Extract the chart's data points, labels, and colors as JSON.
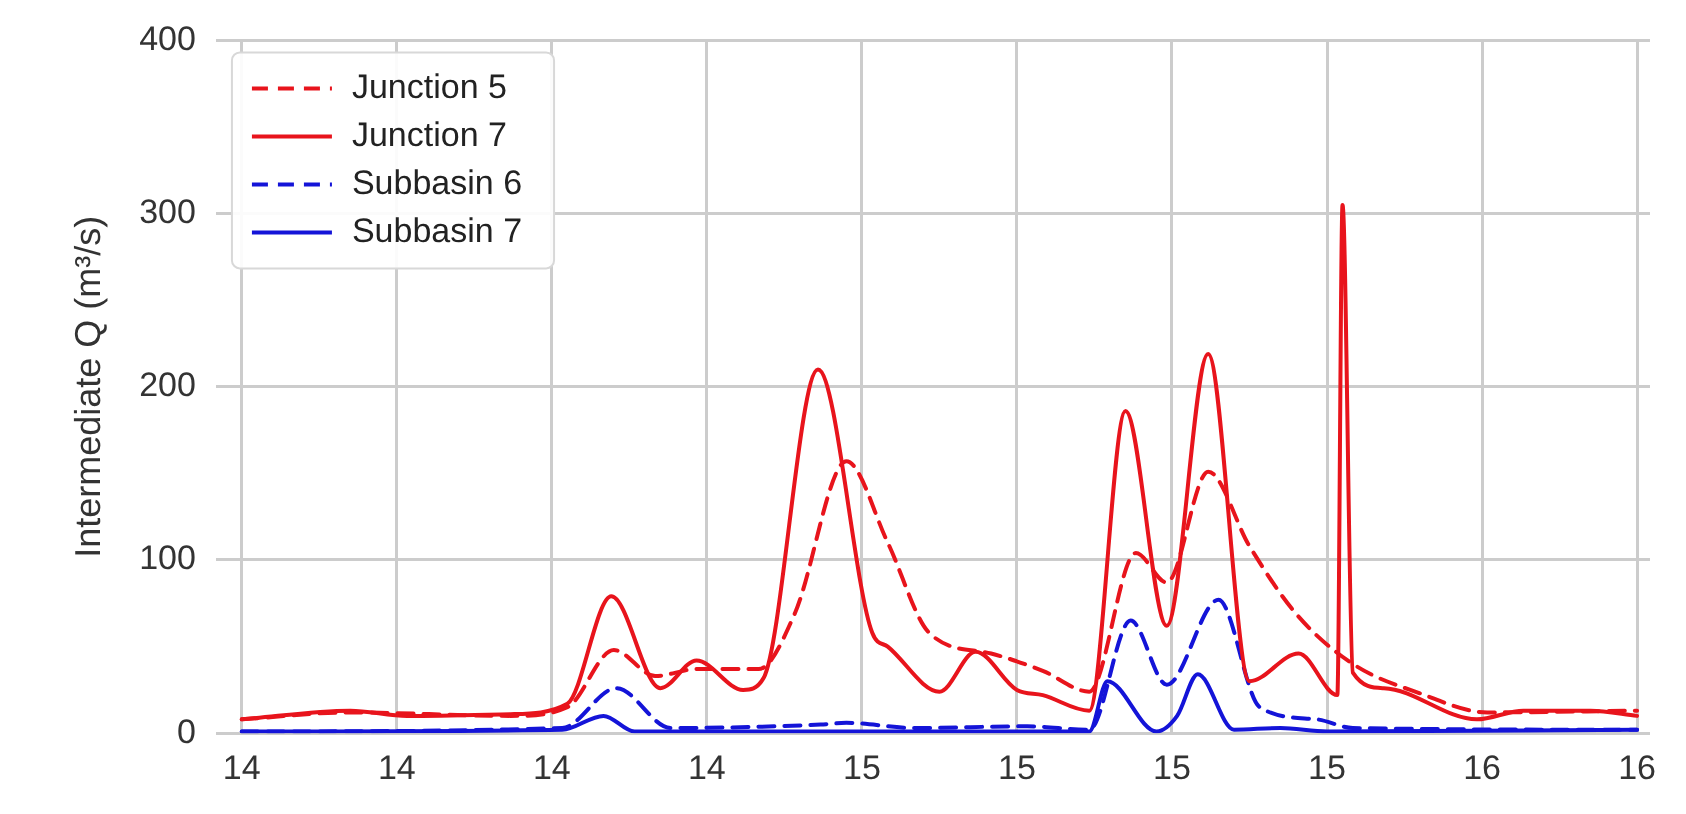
{
  "chart_data": {
    "type": "line",
    "ylabel": "Intermediate Q (m³/s)",
    "xlim": [
      "--01-13T23:00",
      "--01-16T06:30"
    ],
    "ylim": [
      0,
      400
    ],
    "yticks": [
      0,
      100,
      200,
      300,
      400
    ],
    "xticks": [
      {
        "value": "--01-14T00:00",
        "label": "14"
      },
      {
        "value": "--01-14T06:00",
        "label": "14"
      },
      {
        "value": "--01-14T12:00",
        "label": "14"
      },
      {
        "value": "--01-14T18:00",
        "label": "14"
      },
      {
        "value": "--01-15T00:00",
        "label": "15"
      },
      {
        "value": "--01-15T06:00",
        "label": "15"
      },
      {
        "value": "--01-15T12:00",
        "label": "15"
      },
      {
        "value": "--01-15T18:00",
        "label": "15"
      },
      {
        "value": "--01-16T00:00",
        "label": "16"
      },
      {
        "value": "--01-16T06:00",
        "label": "16"
      }
    ],
    "grid": true,
    "legend": "top left",
    "marker": "none",
    "series": [
      {
        "name": "Junction 5",
        "color": "#e8141c",
        "line_style": "dashed",
        "x": [
          "--01-14T00:00",
          "--01-14T04:12",
          "--01-14T10:24",
          "--01-14T12:36",
          "--01-14T14:24",
          "--01-14T16:00",
          "--01-14T17:36",
          "--01-14T20:00",
          "--01-14T21:24",
          "--01-14T23:24",
          "--01-15T01:00",
          "--01-15T02:36",
          "--01-15T05:00",
          "--01-15T07:00",
          "--01-15T08:48",
          "--01-15T10:36",
          "--01-15T11:48",
          "--01-15T13:24",
          "--01-15T15:00",
          "--01-15T16:48",
          "--01-15T19:00",
          "--01-15T21:36",
          "--01-16T00:12",
          "--01-16T06:00"
        ],
        "values": [
          8,
          12,
          10,
          15,
          48,
          33,
          37,
          37,
          69,
          157,
          110,
          58,
          46,
          36,
          24,
          104,
          87,
          151,
          108,
          69,
          40,
          23,
          12,
          13
        ]
      },
      {
        "name": "Junction 7",
        "color": "#e8141c",
        "line_style": "solid",
        "x": [
          "--01-14T00:00",
          "--01-14T04:12",
          "--01-14T06:24",
          "--01-14T10:24",
          "--01-14T12:36",
          "--01-14T14:18",
          "--01-14T16:12",
          "--01-14T17:36",
          "--01-14T19:24",
          "--01-14T20:12",
          "--01-14T22:18",
          "--01-15T00:24",
          "--01-15T01:00",
          "--01-15T03:00",
          "--01-15T04:24",
          "--01-15T06:00",
          "--01-15T07:00",
          "--01-15T08:48",
          "--01-15T10:12",
          "--01-15T11:48",
          "--01-15T13:24",
          "--01-15T15:00",
          "--01-15T16:54",
          "--01-15T18:24",
          "--01-15T18:36",
          "--01-15T19:00",
          "--01-15T20:12",
          "--01-15T23:48",
          "--01-16T01:36",
          "--01-16T04:12",
          "--01-16T06:00"
        ],
        "values": [
          8,
          13,
          10,
          11,
          17,
          79,
          26,
          42,
          25,
          32,
          210,
          58,
          50,
          24,
          47,
          25,
          22,
          13,
          186,
          62,
          219,
          30,
          46,
          22,
          305,
          35,
          26,
          8,
          13,
          13,
          10
        ]
      },
      {
        "name": "Subbasin 6",
        "color": "#1414d8",
        "line_style": "dashed",
        "x": [
          "--01-14T00:00",
          "--01-14T12:24",
          "--01-14T14:30",
          "--01-14T16:36",
          "--01-14T22:24",
          "--01-14T23:24",
          "--01-15T02:00",
          "--01-15T06:24",
          "--01-15T08:48",
          "--01-15T10:24",
          "--01-15T11:48",
          "--01-15T13:48",
          "--01-15T15:24",
          "--01-15T17:36",
          "--01-15T19:00",
          "--01-16T06:00"
        ],
        "values": [
          1,
          3,
          26,
          3,
          5,
          6,
          3,
          4,
          2,
          65,
          28,
          77,
          15,
          8,
          3,
          2
        ]
      },
      {
        "name": "Subbasin 7",
        "color": "#1414d8",
        "line_style": "solid",
        "x": [
          "--01-14T00:00",
          "--01-14T12:24",
          "--01-14T14:00",
          "--01-14T15:12",
          "--01-15T08:48",
          "--01-15T09:30",
          "--01-15T11:24",
          "--01-15T12:12",
          "--01-15T13:00",
          "--01-15T14:24",
          "--01-15T16:12",
          "--01-15T18:00",
          "--01-16T06:00"
        ],
        "values": [
          1,
          2,
          10,
          1,
          1,
          30,
          1,
          10,
          34,
          2,
          3,
          1,
          2
        ]
      }
    ]
  }
}
